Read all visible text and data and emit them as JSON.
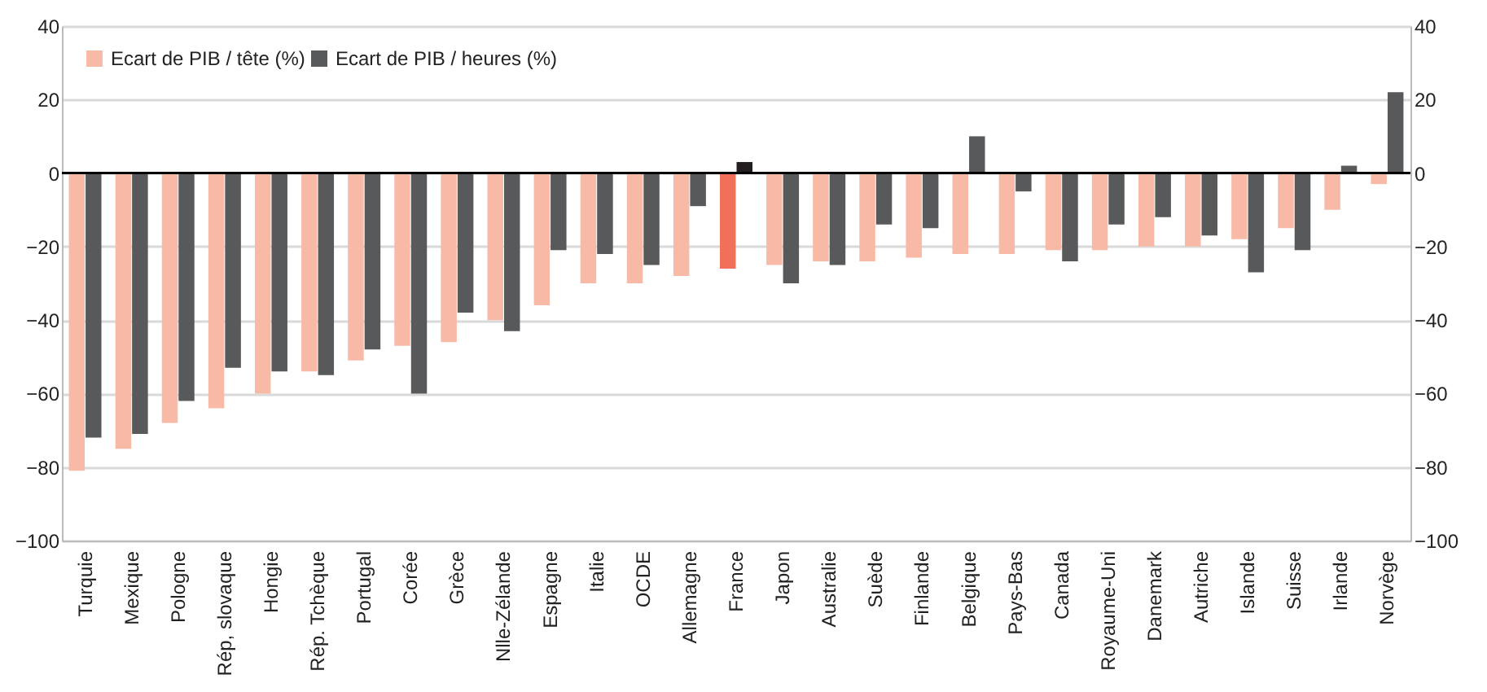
{
  "chart_data": {
    "type": "bar",
    "categories": [
      "Turquie",
      "Mexique",
      "Pologne",
      "Rép, slovaque",
      "Hongie",
      "Rép. Tchèque",
      "Portugal",
      "Corée",
      "Grèce",
      "Nlle-Zélande",
      "Espagne",
      "Italie",
      "OCDE",
      "Allemagne",
      "France",
      "Japon",
      "Australie",
      "Suède",
      "Finlande",
      "Belgique",
      "Pays-Bas",
      "Canada",
      "Royaume-Uni",
      "Danemark",
      "Autriche",
      "Islande",
      "Suisse",
      "Irlande",
      "Norvège"
    ],
    "series": [
      {
        "name": "Ecart de PIB / tête (%)",
        "color": "#f9b9a7",
        "colors": [
          "#f9b9a7",
          "#f9b9a7",
          "#f9b9a7",
          "#f9b9a7",
          "#f9b9a7",
          "#f9b9a7",
          "#f9b9a7",
          "#f9b9a7",
          "#f9b9a7",
          "#f9b9a7",
          "#f9b9a7",
          "#f9b9a7",
          "#f9b9a7",
          "#f9b9a7",
          "#f07059",
          "#f9b9a7",
          "#f9b9a7",
          "#f9b9a7",
          "#f9b9a7",
          "#f9b9a7",
          "#f9b9a7",
          "#f9b9a7",
          "#f9b9a7",
          "#f9b9a7",
          "#f9b9a7",
          "#f9b9a7",
          "#f9b9a7",
          "#f9b9a7",
          "#f9b9a7"
        ],
        "values": [
          -81,
          -75,
          -68,
          -64,
          -60,
          -54,
          -51,
          -47,
          -46,
          -40,
          -36,
          -30,
          -30,
          -28,
          -26,
          -25,
          -24,
          -24,
          -23,
          -22,
          -22,
          -21,
          -21,
          -20,
          -20,
          -18,
          -15,
          -10,
          -3
        ]
      },
      {
        "name": "Ecart de PIB / heures (%)",
        "color": "#58595b",
        "colors": [
          "#58595b",
          "#58595b",
          "#58595b",
          "#58595b",
          "#58595b",
          "#58595b",
          "#58595b",
          "#58595b",
          "#58595b",
          "#58595b",
          "#58595b",
          "#58595b",
          "#58595b",
          "#58595b",
          "#231f20",
          "#58595b",
          "#58595b",
          "#58595b",
          "#58595b",
          "#58595b",
          "#58595b",
          "#58595b",
          "#58595b",
          "#58595b",
          "#58595b",
          "#58595b",
          "#58595b",
          "#58595b",
          "#58595b"
        ],
        "values": [
          -72,
          -71,
          -62,
          -53,
          -54,
          -55,
          -48,
          -60,
          -38,
          -43,
          -21,
          -22,
          -25,
          -9,
          3,
          -30,
          -25,
          -14,
          -15,
          10,
          -5,
          -24,
          -14,
          -12,
          -17,
          -27,
          -21,
          2,
          22
        ]
      }
    ],
    "ylim": [
      -100,
      40
    ],
    "yticks": [
      -100,
      -80,
      -60,
      -40,
      -20,
      0,
      20,
      40
    ],
    "y2lim": [
      -100,
      40
    ],
    "y2ticks": [
      -100,
      -80,
      -60,
      -40,
      -20,
      0,
      20,
      40
    ],
    "ref_lines": [
      {
        "axis": "y",
        "value": 0,
        "color": "#000000"
      }
    ],
    "grid": "y",
    "legend": "top left"
  }
}
